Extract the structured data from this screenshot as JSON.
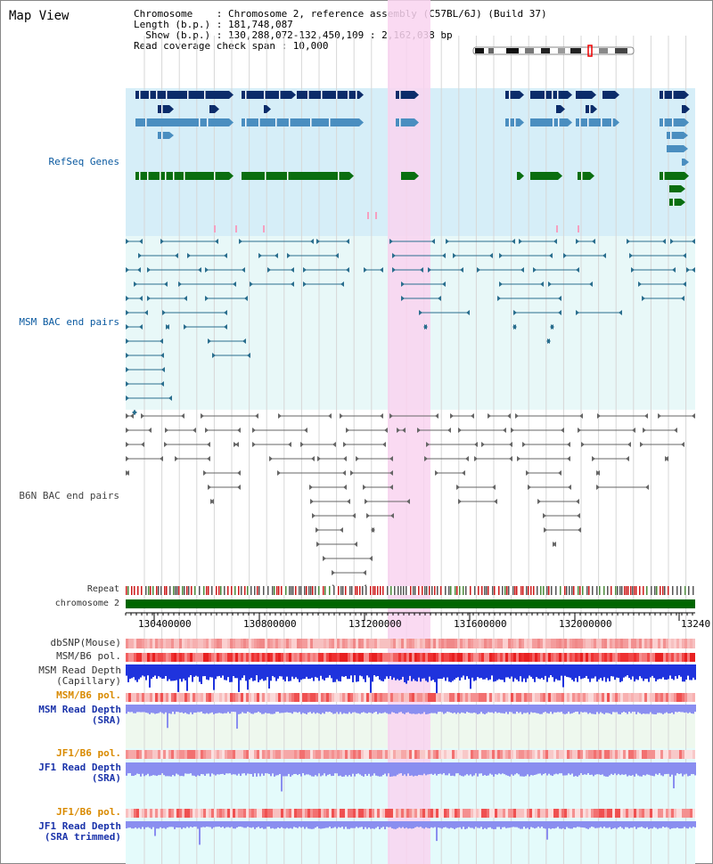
{
  "title": "Map View",
  "info": {
    "line1": "Chromosome    : Chromosome 2, reference assembly (C57BL/6J) (Build 37)",
    "line2": "Length (b.p.) : 181,748,087",
    "line3": "  Show (b.p.) : 130,288,072-132,450,109 : 2,162,038 bp",
    "line4": "Read coverage check span : 10,000"
  },
  "tracks": {
    "refseq": "RefSeq Genes",
    "msm_bac": "MSM BAC end pairs",
    "b6n_bac": "B6N BAC end pairs",
    "repeat": "Repeat",
    "chromosome": "chromosome 2",
    "dbsnp": "dbSNP(Mouse)",
    "msm_b6_pol_1": "MSM/B6 pol.",
    "msm_read_depth_cap_1": "MSM Read Depth",
    "msm_read_depth_cap_2": "(Capillary)",
    "msm_b6_pol_2": "MSM/B6 pol.",
    "msm_read_depth_sra_1": "MSM Read Depth",
    "msm_read_depth_sra_2": "(SRA)",
    "jf1_b6_pol_1": "JF1/B6 pol.",
    "jf1_read_depth_sra_1": "JF1 Read Depth",
    "jf1_read_depth_sra_2": "(SRA)",
    "jf1_b6_pol_2": "JF1/B6 pol.",
    "jf1_read_depth_trim_1": "JF1 Read Depth",
    "jf1_read_depth_trim_2": "(SRA trimmed)"
  },
  "axis": {
    "ticks": [
      "130400000",
      "130800000",
      "131200000",
      "131600000",
      "132000000",
      "13240"
    ]
  },
  "colors": {
    "refseq_bg": "#d6eef8",
    "bac_bg": "#e8f8f8",
    "highlight": "#f9d3f0",
    "refseq_dark": "#0c2c6a",
    "refseq_mid": "#4a8ec0",
    "refseq_green": "#0a6e10",
    "msm_bac_line": "#2a6e8e",
    "b6n_bac_line": "#666666",
    "chromosome_bar": "#006600",
    "depth_blue": "#1f33dd",
    "depth_light": "#8a8ef0"
  }
}
